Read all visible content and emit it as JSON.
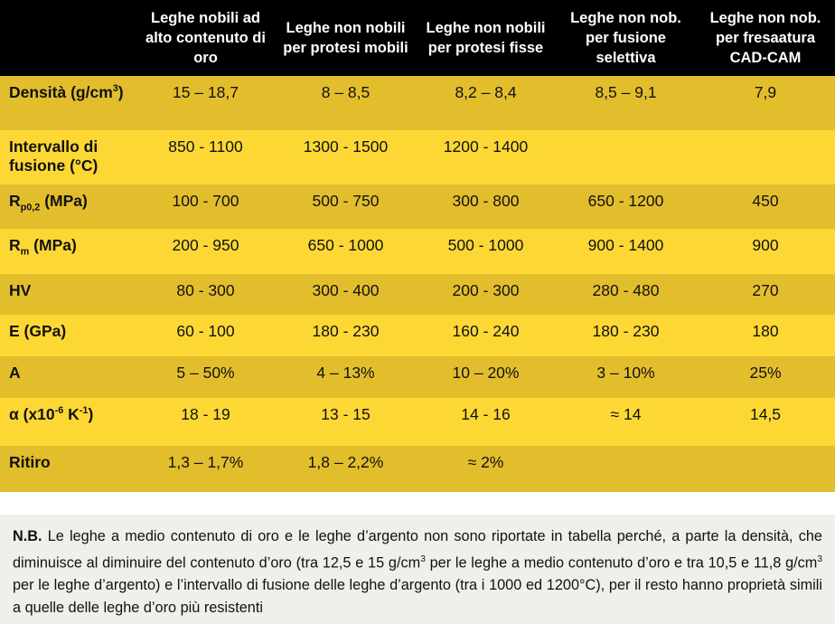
{
  "headers": [
    "",
    "Leghe nobili ad alto contenuto di oro",
    "Leghe non nobili per protesi mobili",
    "Leghe non nobili per protesi fisse",
    "Leghe non nob. per fusione selettiva",
    "Leghe non nob. per fresaatura CAD-CAM"
  ],
  "rows": [
    {
      "label_main": "Densità (g/cm",
      "label_sup": "3",
      "label_tail": ")",
      "values": [
        "15 – 18,7",
        "8 – 8,5",
        "8,2 – 8,4",
        "8,5 – 9,1",
        "7,9"
      ]
    },
    {
      "label_main": "Intervallo di fusione (°C)",
      "values": [
        "850 - 1100",
        "1300 - 1500",
        "1200 - 1400",
        "",
        ""
      ]
    },
    {
      "label_main": "R",
      "label_sub": "p0,2",
      "label_tail": " (MPa)",
      "values": [
        "100 - 700",
        "500 - 750",
        "300 - 800",
        "650 - 1200",
        "450"
      ]
    },
    {
      "label_main": "R",
      "label_sub": "m",
      "label_tail": " (MPa)",
      "values": [
        "200 - 950",
        "650 - 1000",
        "500 - 1000",
        "900 - 1400",
        "900"
      ]
    },
    {
      "label_main": "HV",
      "values": [
        "80 - 300",
        "300 - 400",
        "200 - 300",
        "280 - 480",
        "270"
      ]
    },
    {
      "label_main": "E (GPa)",
      "values": [
        "60 - 100",
        "180 - 230",
        "160 - 240",
        "180 - 230",
        "180"
      ]
    },
    {
      "label_main": "A",
      "values": [
        "5 – 50%",
        "4 – 13%",
        "10 – 20%",
        "3 – 10%",
        "25%"
      ]
    },
    {
      "label_main": "α (x10",
      "label_sup": "-6",
      "label_mid": " K",
      "label_sup2": "-1",
      "label_tail": ")",
      "values": [
        "18 - 19",
        "13 - 15",
        "14 - 16",
        "≈ 14",
        "14,5"
      ]
    },
    {
      "label_main": "Ritiro",
      "values": [
        "1,3 – 1,7%",
        "1,8 – 2,2%",
        "≈ 2%",
        "",
        ""
      ]
    }
  ],
  "note": {
    "prefix": "N.B.",
    "part1": " Le leghe a medio contenuto di oro e le leghe d’argento non sono riportate in tabella perché, a parte la densità, che diminuisce al diminuire del contenuto d’oro (tra 12,5 e 15 g/cm",
    "sup1": "3",
    "part2": " per le leghe a medio contenuto d’oro e tra 10,5 e 11,8 g/cm",
    "sup2": "3",
    "part3": " per le leghe d’argento) e l’intervallo di fusione delle leghe d’argento (tra i 1000 ed 1200°C), per il resto hanno proprietà simili a quelle delle leghe d’oro più resistenti"
  },
  "colors": {
    "header_bg": "#000000",
    "row_dark": "#e3be2c",
    "row_light": "#fdd835",
    "note_bg": "#efefeb"
  }
}
